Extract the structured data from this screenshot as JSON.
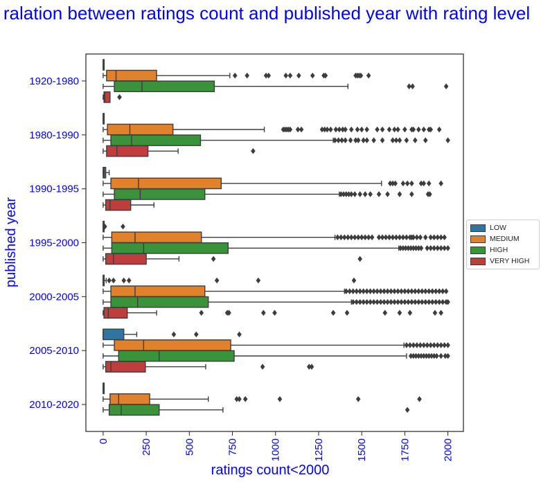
{
  "chart_data": {
    "type": "box",
    "orientation": "horizontal",
    "title": "ralation between ratings count and published year with rating level",
    "xlabel": "ratings count<2000",
    "ylabel": "published year",
    "xlim": [
      -100,
      2090
    ],
    "xticks": [
      0,
      250,
      500,
      750,
      1000,
      1250,
      1500,
      1750,
      2000
    ],
    "categories": [
      "1920-1980",
      "1980-1990",
      "1990-1995",
      "1995-2000",
      "2000-2005",
      "2005-2010",
      "2010-2020"
    ],
    "legend_position": "right",
    "grid": false,
    "series": [
      {
        "name": "LOW",
        "color": "#3274a1",
        "boxes": [
          {
            "category": "1920-1980",
            "whisker_low": 0,
            "q1": 0,
            "median": 0,
            "q3": 2,
            "whisker_high": 4,
            "outliers": []
          },
          {
            "category": "1980-1990",
            "whisker_low": 0,
            "q1": 0,
            "median": 0,
            "q3": 2,
            "whisker_high": 4,
            "outliers": []
          },
          {
            "category": "1990-1995",
            "whisker_low": 0,
            "q1": 0,
            "median": 5,
            "q3": 15,
            "whisker_high": 35,
            "outliers": []
          },
          {
            "category": "1995-2000",
            "whisker_low": 0,
            "q1": 0,
            "median": 0,
            "q3": 2,
            "whisker_high": 5,
            "outliers": [
              10,
              115
            ]
          },
          {
            "category": "2000-2005",
            "whisker_low": 0,
            "q1": 0,
            "median": 0,
            "q3": 5,
            "whisker_high": 18,
            "outliers": [
              35,
              60,
              120,
              150,
              660,
              900,
              1455
            ]
          },
          {
            "category": "2005-2010",
            "whisker_low": 0,
            "q1": 0,
            "median": 0,
            "q3": 120,
            "whisker_high": 195,
            "outliers": [
              410,
              540,
              790
            ]
          },
          {
            "category": "2010-2020",
            "whisker_low": 0,
            "q1": 0,
            "median": 0,
            "q3": 2,
            "whisker_high": 5,
            "outliers": []
          }
        ]
      },
      {
        "name": "MEDIUM",
        "color": "#e1812c",
        "boxes": [
          {
            "category": "1920-1980",
            "whisker_low": 0,
            "q1": 20,
            "median": 75,
            "q3": 310,
            "whisker_high": 735,
            "outliers": [
              765,
              835,
              945,
              960,
              1060,
              1085,
              1135,
              1215,
              1280,
              1290,
              1465,
              1475,
              1485,
              1495,
              1540
            ]
          },
          {
            "category": "1980-1990",
            "whisker_low": 0,
            "q1": 25,
            "median": 155,
            "q3": 405,
            "whisker_high": 935,
            "outliers": [
              1045,
              1055,
              1065,
              1075,
              1085,
              1130,
              1150,
              1270,
              1285,
              1300,
              1320,
              1350,
              1370,
              1390,
              1405,
              1440,
              1475,
              1500,
              1530,
              1590,
              1620,
              1660,
              1690,
              1710,
              1750,
              1790,
              1800,
              1830,
              1860,
              1890,
              1900,
              1950
            ]
          },
          {
            "category": "1990-1995",
            "whisker_low": 0,
            "q1": 45,
            "median": 205,
            "q3": 685,
            "whisker_high": 1615,
            "outliers": [
              1665,
              1680,
              1695,
              1740,
              1765,
              1790,
              1845,
              1860,
              1890,
              1960
            ]
          },
          {
            "category": "1995-2000",
            "whisker_low": 0,
            "q1": 50,
            "median": 185,
            "q3": 570,
            "whisker_high": 1345,
            "outliers": [
              1360,
              1380,
              1400,
              1420,
              1440,
              1460,
              1480,
              1500,
              1520,
              1540,
              1560,
              1600,
              1620,
              1640,
              1660,
              1680,
              1700,
              1720,
              1740,
              1760,
              1780,
              1790,
              1800,
              1820,
              1840,
              1870,
              1900,
              1920,
              1940,
              1960,
              1980
            ]
          },
          {
            "category": "2000-2005",
            "whisker_low": 0,
            "q1": 45,
            "median": 185,
            "q3": 590,
            "whisker_high": 1400,
            "outliers": [
              1410,
              1430,
              1450,
              1470,
              1490,
              1510,
              1530,
              1550,
              1570,
              1590,
              1610,
              1630,
              1650,
              1670,
              1690,
              1710,
              1730,
              1750,
              1770,
              1790,
              1810,
              1830,
              1850,
              1870,
              1890,
              1910,
              1930,
              1950,
              1970,
              1990
            ]
          },
          {
            "category": "2005-2010",
            "whisker_low": 0,
            "q1": 65,
            "median": 235,
            "q3": 740,
            "whisker_high": 1745,
            "outliers": [
              1760,
              1780,
              1800,
              1820,
              1840,
              1860,
              1880,
              1900,
              1920,
              1940,
              1960,
              1980,
              2000
            ]
          },
          {
            "category": "2010-2020",
            "whisker_low": 0,
            "q1": 40,
            "median": 90,
            "q3": 270,
            "whisker_high": 610,
            "outliers": [
              775,
              790,
              825,
              1025,
              1480,
              1835
            ]
          }
        ]
      },
      {
        "name": "HIGH",
        "color": "#3a923a",
        "boxes": [
          {
            "category": "1920-1980",
            "whisker_low": 0,
            "q1": 65,
            "median": 225,
            "q3": 645,
            "whisker_high": 1420,
            "outliers": [
              1775,
              1795,
              1990
            ]
          },
          {
            "category": "1980-1990",
            "whisker_low": 0,
            "q1": 45,
            "median": 165,
            "q3": 565,
            "whisker_high": 1335,
            "outliers": [
              1345,
              1365,
              1385,
              1405,
              1435,
              1465,
              1480,
              1510,
              1530,
              1570,
              1620,
              1680,
              1700,
              1720,
              1760,
              1810,
              1870,
              2000
            ]
          },
          {
            "category": "1990-1995",
            "whisker_low": 0,
            "q1": 65,
            "median": 215,
            "q3": 590,
            "whisker_high": 1370,
            "outliers": [
              1380,
              1395,
              1410,
              1425,
              1440,
              1460,
              1490,
              1520,
              1550,
              1600,
              1650,
              1720,
              1790,
              1885,
              1895
            ]
          },
          {
            "category": "1995-2000",
            "whisker_low": 0,
            "q1": 50,
            "median": 235,
            "q3": 725,
            "whisker_high": 1715,
            "outliers": [
              1725,
              1740,
              1755,
              1770,
              1785,
              1800,
              1815,
              1830,
              1845,
              1880,
              1900,
              1920,
              1940,
              1960,
              1980,
              2000
            ]
          },
          {
            "category": "2000-2005",
            "whisker_low": 0,
            "q1": 45,
            "median": 200,
            "q3": 610,
            "whisker_high": 1440,
            "outliers": [
              1450,
              1470,
              1490,
              1510,
              1530,
              1550,
              1570,
              1590,
              1610,
              1630,
              1650,
              1670,
              1690,
              1710,
              1730,
              1750,
              1770,
              1790,
              1810,
              1830,
              1850,
              1870,
              1890,
              1910,
              1930,
              1950,
              1970,
              1990,
              2000
            ]
          },
          {
            "category": "2005-2010",
            "whisker_low": 0,
            "q1": 90,
            "median": 325,
            "q3": 760,
            "whisker_high": 1760,
            "outliers": [
              1785,
              1800,
              1815,
              1830,
              1845,
              1860,
              1875,
              1890,
              1905,
              1920,
              1935,
              1960,
              1985,
              2000
            ]
          },
          {
            "category": "2010-2020",
            "whisker_low": 0,
            "q1": 35,
            "median": 105,
            "q3": 325,
            "whisker_high": 695,
            "outliers": [
              1765
            ]
          }
        ]
      },
      {
        "name": "VERY HIGH",
        "color": "#c03d3e",
        "boxes": [
          {
            "category": "1920-1980",
            "whisker_low": 0,
            "q1": 5,
            "median": 10,
            "q3": 40,
            "whisker_high": 40,
            "outliers": [
              95
            ]
          },
          {
            "category": "1980-1990",
            "whisker_low": 0,
            "q1": 20,
            "median": 80,
            "q3": 260,
            "whisker_high": 435,
            "outliers": [
              870
            ]
          },
          {
            "category": "1990-1995",
            "whisker_low": 0,
            "q1": 15,
            "median": 40,
            "q3": 160,
            "whisker_high": 295,
            "outliers": []
          },
          {
            "category": "1995-2000",
            "whisker_low": 0,
            "q1": 15,
            "median": 60,
            "q3": 250,
            "whisker_high": 440,
            "outliers": [
              640,
              1490
            ]
          },
          {
            "category": "2000-2005",
            "whisker_low": 0,
            "q1": 5,
            "median": 30,
            "q3": 140,
            "whisker_high": 310,
            "outliers": [
              570,
              720,
              730,
              930,
              995,
              1335,
              1415,
              1635,
              1720,
              1780,
              1925,
              1960
            ]
          },
          {
            "category": "2005-2010",
            "whisker_low": 0,
            "q1": 15,
            "median": 45,
            "q3": 245,
            "whisker_high": 595,
            "outliers": [
              925,
              1195,
              1210
            ]
          }
        ]
      }
    ]
  }
}
